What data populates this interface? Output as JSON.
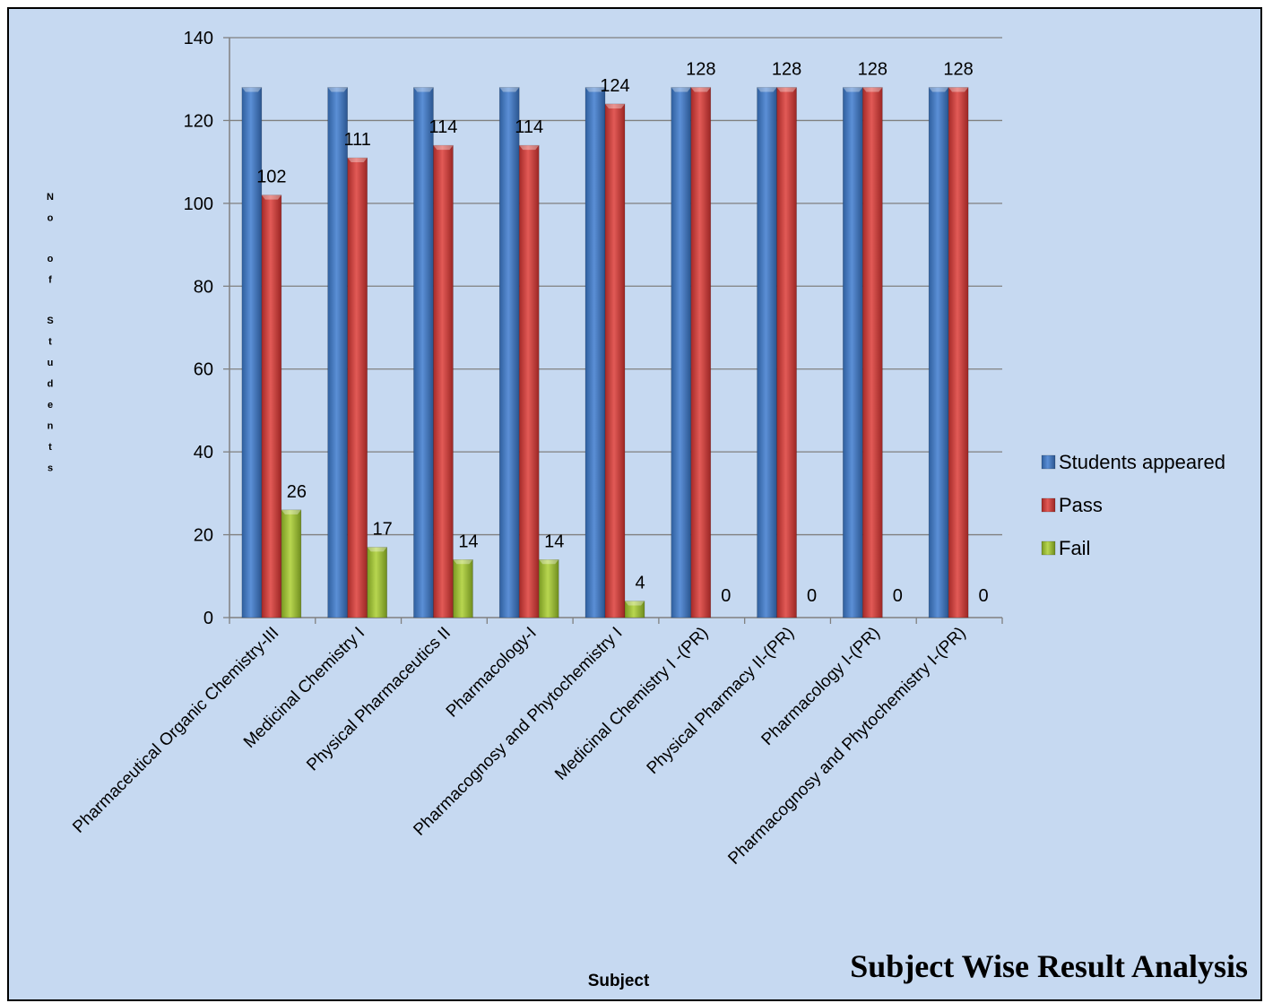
{
  "chart_data": {
    "type": "bar",
    "title": "Subject Wise Result Analysis",
    "xlabel": "Subject",
    "ylabel": "No of Students",
    "ylim": [
      0,
      140
    ],
    "yticks": [
      0,
      20,
      40,
      60,
      80,
      100,
      120,
      140
    ],
    "grid": true,
    "legend_position": "right",
    "categories": [
      "Pharmaceutical Organic Chemistry-III",
      "Medicinal Chemistry I",
      "Physical Pharmaceutics II",
      "Pharmacology-I",
      "Pharmacognosy and Phytochemistry I",
      "Medicinal Chemistry I -(PR)",
      "Physical Pharmacy II-(PR)",
      "Pharmacology I-(PR)",
      "Pharmacognosy and Phytochemistry I-(PR)"
    ],
    "series": [
      {
        "name": "Students appeared",
        "color": "#4a7ec9",
        "values": [
          128,
          128,
          128,
          128,
          128,
          128,
          128,
          128,
          128
        ],
        "labeled": false
      },
      {
        "name": "Pass",
        "color": "#d9413f",
        "values": [
          102,
          111,
          114,
          114,
          124,
          128,
          128,
          128,
          128
        ],
        "labeled": true
      },
      {
        "name": "Fail",
        "color": "#a4c43c",
        "values": [
          26,
          17,
          14,
          14,
          4,
          0,
          0,
          0,
          0
        ],
        "labeled": true
      }
    ]
  }
}
